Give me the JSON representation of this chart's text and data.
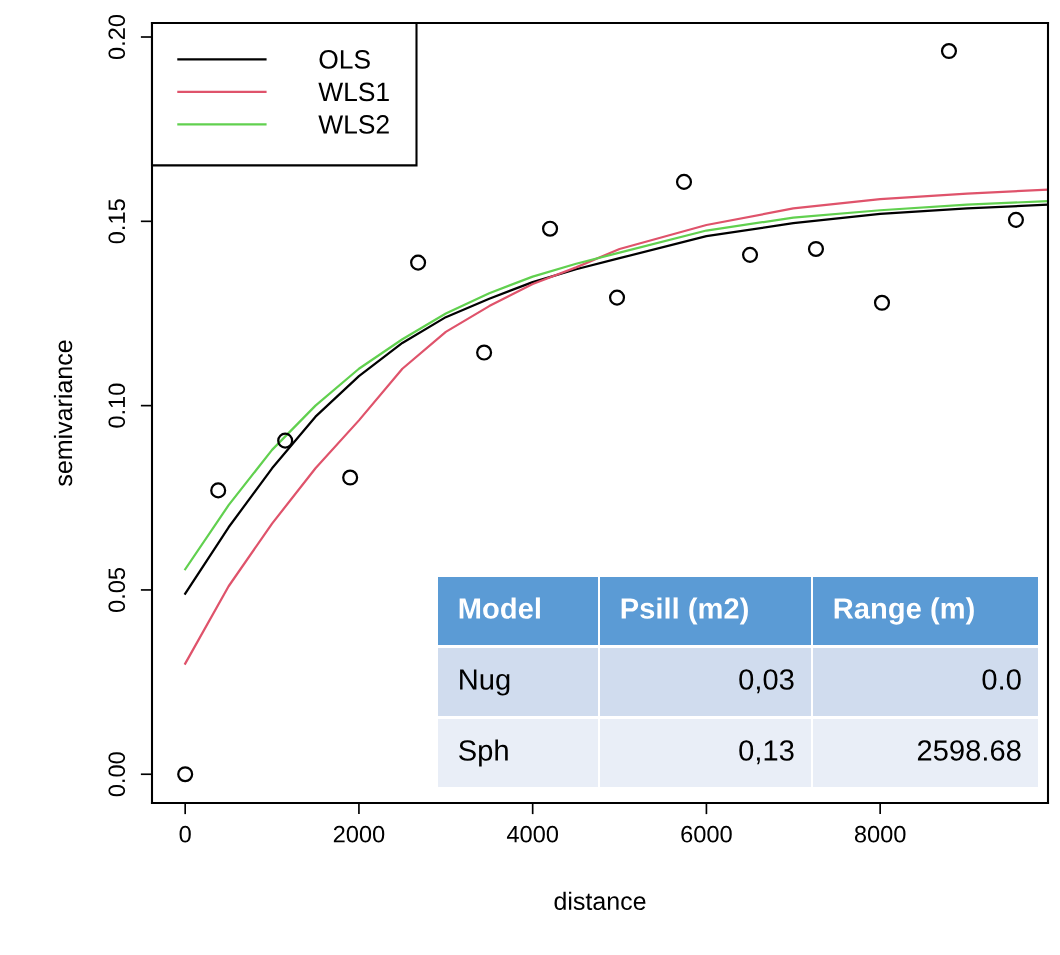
{
  "chart_data": {
    "type": "scatter",
    "xlabel": "distance",
    "ylabel": "semivariance",
    "xlim": [
      -382,
      9932
    ],
    "ylim": [
      -0.0078,
      0.2038
    ],
    "xticks": [
      0,
      2000,
      4000,
      6000,
      8000
    ],
    "yticks": [
      {
        "value": 0,
        "label": "0.00"
      },
      {
        "value": 0.05,
        "label": "0.05"
      },
      {
        "value": 0.1,
        "label": "0.10"
      },
      {
        "value": 0.15,
        "label": "0.15"
      },
      {
        "value": 0.2,
        "label": "0.20"
      }
    ],
    "grid": false,
    "legend": "top left",
    "series": [
      {
        "marker": "circle",
        "color": "#000000",
        "x": [
          0,
          380,
          1151,
          1899,
          2681,
          3441,
          4200,
          4971,
          5742,
          6502,
          7261,
          8021,
          8792,
          9563
        ],
        "values": [
          0.0,
          0.077,
          0.0905,
          0.0805,
          0.1388,
          0.1144,
          0.148,
          0.1293,
          0.1607,
          0.1409,
          0.1425,
          0.1279,
          0.1962,
          0.1504
        ]
      },
      {
        "type": "line",
        "name": "OLS",
        "color": "#000000",
        "x": [
          0,
          500,
          1000,
          1500,
          2000,
          2500,
          3000,
          3500,
          4000,
          4500,
          5000,
          6000,
          7000,
          8000,
          9000,
          9931
        ],
        "values": [
          0.049,
          0.067,
          0.083,
          0.097,
          0.108,
          0.117,
          0.124,
          0.129,
          0.1335,
          0.137,
          0.14,
          0.146,
          0.1495,
          0.152,
          0.1535,
          0.1545
        ]
      },
      {
        "type": "line",
        "name": "WLS1",
        "color": "#df536b",
        "x": [
          0,
          500,
          1000,
          1500,
          2000,
          2500,
          3000,
          3500,
          4000,
          4500,
          5000,
          6000,
          7000,
          8000,
          9000,
          9931
        ],
        "values": [
          0.03,
          0.051,
          0.068,
          0.083,
          0.096,
          0.11,
          0.12,
          0.127,
          0.133,
          0.1375,
          0.1425,
          0.149,
          0.1535,
          0.156,
          0.1575,
          0.1586
        ]
      },
      {
        "type": "line",
        "name": "WLS2",
        "color": "#61d04f",
        "x": [
          0,
          500,
          1000,
          1500,
          2000,
          2500,
          3000,
          3500,
          4000,
          4500,
          5000,
          6000,
          7000,
          8000,
          9000,
          9931
        ],
        "values": [
          0.0556,
          0.073,
          0.088,
          0.1,
          0.11,
          0.118,
          0.125,
          0.1305,
          0.135,
          0.1385,
          0.1415,
          0.1475,
          0.151,
          0.153,
          0.1545,
          0.1555
        ]
      }
    ],
    "annotations": [
      "Model",
      "Psill (m2)",
      "Range (m)",
      "Nug",
      "0,03",
      "0.0",
      "Sph",
      "0,13",
      "2598.68"
    ]
  }
}
